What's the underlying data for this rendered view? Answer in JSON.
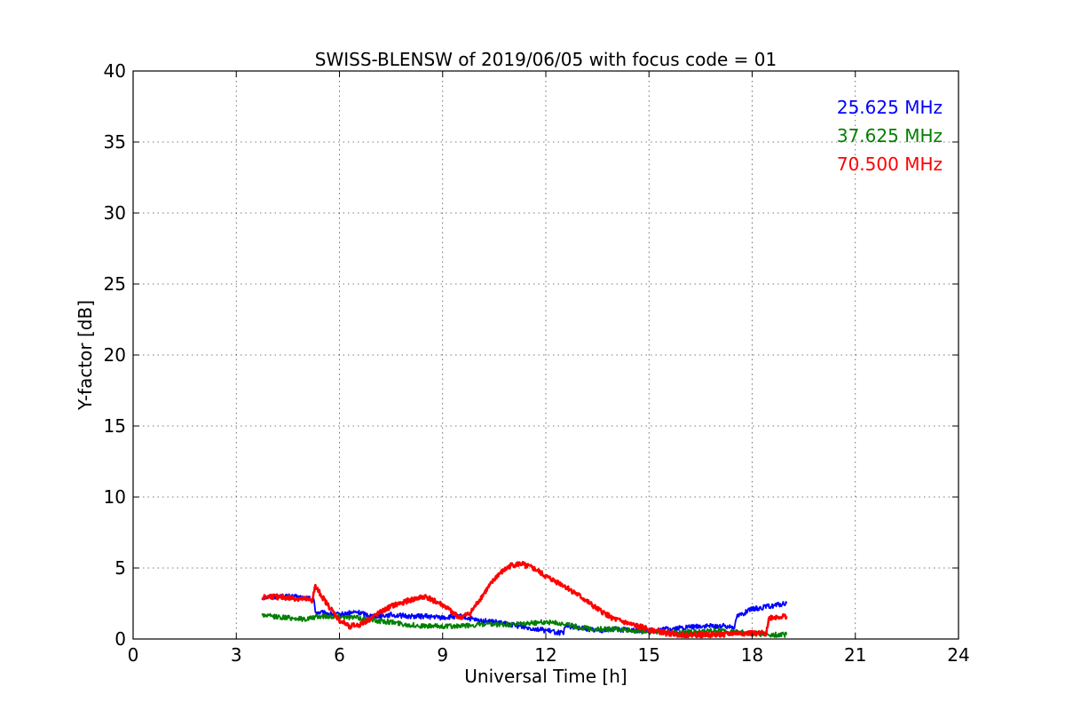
{
  "chart_data": {
    "type": "line",
    "title": "SWISS-BLENSW of 2019/06/05 with focus code = 01",
    "xlabel": "Universal Time [h]",
    "ylabel": "Y-factor [dB]",
    "xlim": [
      0,
      24
    ],
    "ylim": [
      0,
      40
    ],
    "xticks": [
      "0",
      "3",
      "6",
      "9",
      "12",
      "15",
      "18",
      "21",
      "24"
    ],
    "yticks": [
      "0",
      "5",
      "10",
      "15",
      "20",
      "25",
      "30",
      "35",
      "40"
    ],
    "grid": true,
    "legend_position": "top-right",
    "series": [
      {
        "name": "25.625 MHz",
        "color": "#0000ff",
        "x": [
          3.75,
          4.0,
          4.5,
          5.0,
          5.25,
          5.3,
          5.6,
          6.0,
          6.5,
          7.0,
          7.5,
          8.0,
          8.5,
          9.0,
          9.5,
          10.0,
          10.5,
          11.0,
          11.5,
          12.0,
          12.5,
          12.6,
          13.0,
          13.5,
          14.0,
          14.5,
          15.0,
          15.5,
          16.0,
          16.5,
          17.0,
          17.5,
          17.55,
          18.0,
          18.5,
          19.0
        ],
        "y": [
          2.9,
          3.0,
          3.0,
          2.9,
          2.8,
          1.9,
          1.8,
          1.7,
          1.9,
          1.6,
          1.7,
          1.6,
          1.6,
          1.5,
          1.6,
          1.3,
          1.2,
          1.0,
          0.8,
          0.6,
          0.4,
          0.9,
          0.8,
          0.6,
          0.7,
          0.6,
          0.6,
          0.7,
          0.8,
          0.9,
          0.9,
          0.9,
          1.6,
          2.1,
          2.3,
          2.5
        ]
      },
      {
        "name": "37.625 MHz",
        "color": "#008000",
        "x": [
          3.75,
          4.0,
          4.5,
          5.0,
          5.5,
          6.0,
          6.5,
          7.0,
          7.5,
          8.0,
          8.5,
          9.0,
          9.5,
          10.0,
          10.5,
          11.0,
          11.5,
          12.0,
          12.5,
          13.0,
          13.5,
          14.0,
          14.5,
          15.0,
          15.5,
          16.0,
          16.5,
          17.0,
          17.5,
          18.0,
          18.5,
          19.0
        ],
        "y": [
          1.7,
          1.6,
          1.5,
          1.4,
          1.6,
          1.6,
          1.5,
          1.3,
          1.2,
          1.0,
          0.9,
          0.9,
          0.9,
          1.0,
          1.0,
          1.0,
          1.1,
          1.2,
          1.1,
          0.8,
          0.7,
          0.7,
          0.6,
          0.5,
          0.5,
          0.5,
          0.5,
          0.6,
          0.5,
          0.4,
          0.3,
          0.3
        ]
      },
      {
        "name": "70.500 MHz",
        "color": "#ff0000",
        "x": [
          3.75,
          4.0,
          4.5,
          5.0,
          5.2,
          5.3,
          5.6,
          6.0,
          6.3,
          6.6,
          7.0,
          7.5,
          8.0,
          8.5,
          9.0,
          9.5,
          9.8,
          10.2,
          10.6,
          11.0,
          11.3,
          11.7,
          12.0,
          12.5,
          13.0,
          13.5,
          14.0,
          14.5,
          15.0,
          15.5,
          16.0,
          16.5,
          17.0,
          17.5,
          18.0,
          18.4,
          18.5,
          19.0
        ],
        "y": [
          2.9,
          3.0,
          2.9,
          2.8,
          2.7,
          3.7,
          2.6,
          1.3,
          0.9,
          1.0,
          1.6,
          2.3,
          2.7,
          3.0,
          2.4,
          1.5,
          1.8,
          3.2,
          4.5,
          5.2,
          5.3,
          4.9,
          4.4,
          3.8,
          3.0,
          2.1,
          1.4,
          1.0,
          0.7,
          0.4,
          0.3,
          0.3,
          0.3,
          0.4,
          0.4,
          0.4,
          1.5,
          1.6
        ]
      }
    ]
  }
}
